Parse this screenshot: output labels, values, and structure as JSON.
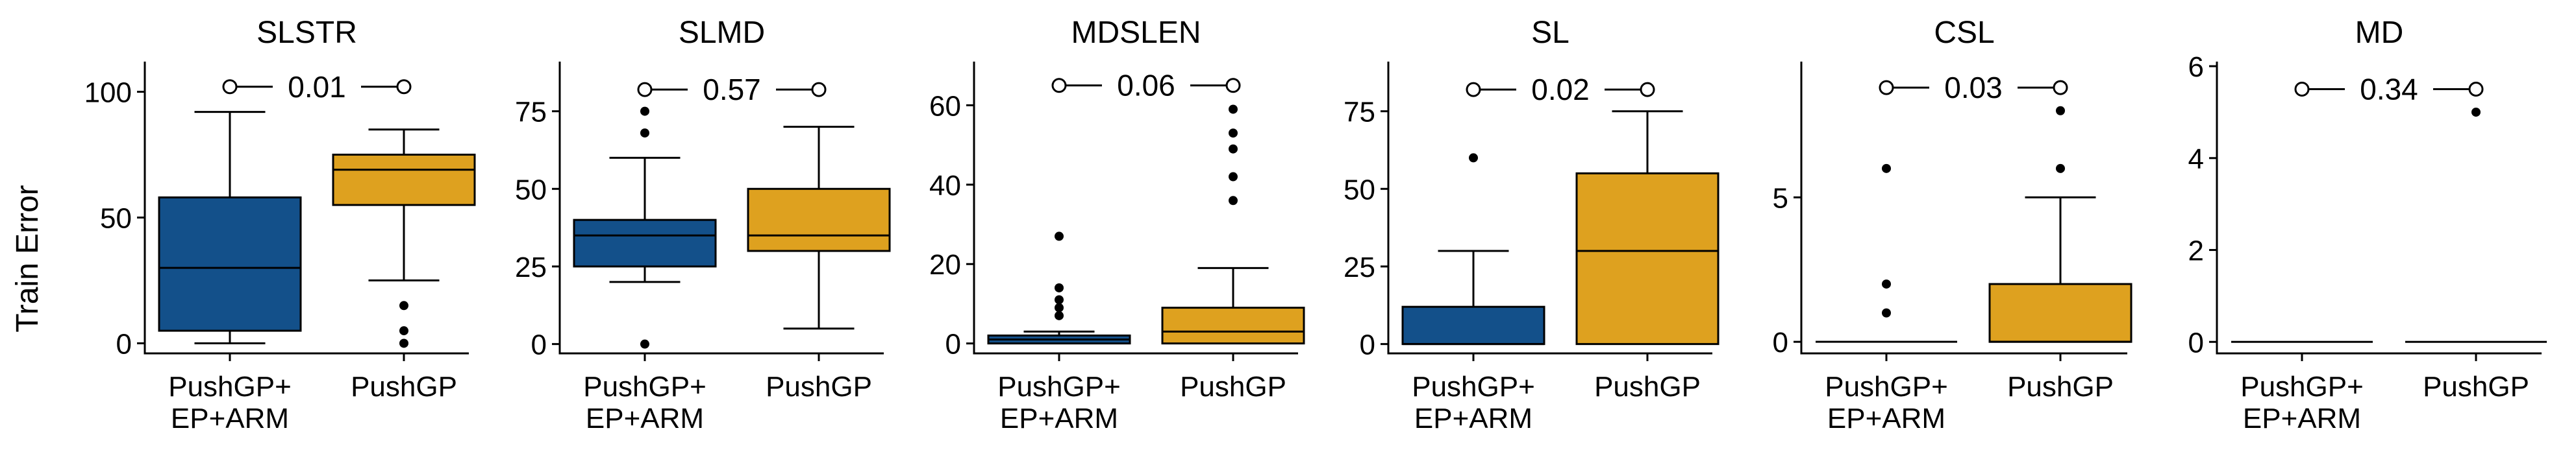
{
  "figure": {
    "ylabel": "Train Error"
  },
  "colors": {
    "PushGP+EP+ARM": "#13508a",
    "PushGP": "#dea11f",
    "edge": "#000000"
  },
  "chart_data": [
    {
      "type": "boxplot",
      "title": "SLSTR",
      "categories": [
        "PushGP+\nEP+ARM",
        "PushGP"
      ],
      "ylabel": "Train Error",
      "ylim": [
        -4,
        112
      ],
      "yticks": [
        0,
        50,
        100
      ],
      "grid": false,
      "annotation": {
        "text": "0.01",
        "y": 102
      },
      "series": [
        {
          "name": "PushGP+EP+ARM",
          "color": "#13508a",
          "whisker_low": 0,
          "q1": 5,
          "median": 30,
          "q3": 58,
          "whisker_high": 92,
          "outliers": []
        },
        {
          "name": "PushGP",
          "color": "#dea11f",
          "whisker_low": 25,
          "q1": 55,
          "median": 69,
          "q3": 75,
          "whisker_high": 85,
          "outliers": [
            15,
            5,
            0
          ]
        }
      ]
    },
    {
      "type": "boxplot",
      "title": "SLMD",
      "categories": [
        "PushGP+\nEP+ARM",
        "PushGP"
      ],
      "ylim": [
        -3,
        91
      ],
      "yticks": [
        0,
        25,
        50,
        75
      ],
      "grid": false,
      "annotation": {
        "text": "0.57",
        "y": 82
      },
      "series": [
        {
          "name": "PushGP+EP+ARM",
          "color": "#13508a",
          "whisker_low": 20,
          "q1": 25,
          "median": 35,
          "q3": 40,
          "whisker_high": 60,
          "outliers": [
            75,
            68,
            0
          ]
        },
        {
          "name": "PushGP",
          "color": "#dea11f",
          "whisker_low": 5,
          "q1": 30,
          "median": 35,
          "q3": 50,
          "whisker_high": 70,
          "outliers": []
        }
      ]
    },
    {
      "type": "boxplot",
      "title": "MDSLEN",
      "categories": [
        "PushGP+\nEP+ARM",
        "PushGP"
      ],
      "ylim": [
        -2.5,
        71
      ],
      "yticks": [
        0,
        20,
        40,
        60
      ],
      "grid": false,
      "annotation": {
        "text": "0.06",
        "y": 65
      },
      "series": [
        {
          "name": "PushGP+EP+ARM",
          "color": "#13508a",
          "whisker_low": 0,
          "q1": 0,
          "median": 1,
          "q3": 2,
          "whisker_high": 3,
          "outliers": [
            27,
            14,
            11,
            9,
            7
          ]
        },
        {
          "name": "PushGP",
          "color": "#dea11f",
          "whisker_low": 0,
          "q1": 0,
          "median": 3,
          "q3": 9,
          "whisker_high": 19,
          "outliers": [
            59,
            53,
            49,
            42,
            36
          ]
        }
      ]
    },
    {
      "type": "boxplot",
      "title": "SL",
      "categories": [
        "PushGP+\nEP+ARM",
        "PushGP"
      ],
      "ylim": [
        -3,
        91
      ],
      "yticks": [
        0,
        25,
        50,
        75
      ],
      "grid": false,
      "annotation": {
        "text": "0.02",
        "y": 82
      },
      "series": [
        {
          "name": "PushGP+EP+ARM",
          "color": "#13508a",
          "whisker_low": 0,
          "q1": 0,
          "median": 0,
          "q3": 12,
          "whisker_high": 30,
          "outliers": [
            60
          ]
        },
        {
          "name": "PushGP",
          "color": "#dea11f",
          "whisker_low": 0,
          "q1": 0,
          "median": 30,
          "q3": 55,
          "whisker_high": 75,
          "outliers": []
        }
      ]
    },
    {
      "type": "boxplot",
      "title": "CSL",
      "categories": [
        "PushGP+\nEP+ARM",
        "PushGP"
      ],
      "ylim": [
        -0.4,
        9.7
      ],
      "yticks": [
        0,
        5
      ],
      "grid": false,
      "annotation": {
        "text": "0.03",
        "y": 8.8
      },
      "series": [
        {
          "name": "PushGP+EP+ARM",
          "color": "#13508a",
          "whisker_low": 0,
          "q1": 0,
          "median": 0,
          "q3": 0,
          "whisker_high": 0,
          "outliers": [
            6,
            2,
            1
          ]
        },
        {
          "name": "PushGP",
          "color": "#dea11f",
          "whisker_low": 0,
          "q1": 0,
          "median": 0,
          "q3": 2,
          "whisker_high": 5,
          "outliers": [
            8,
            6
          ]
        }
      ]
    },
    {
      "type": "boxplot",
      "title": "MD",
      "categories": [
        "PushGP+\nEP+ARM",
        "PushGP"
      ],
      "ylim": [
        -0.25,
        6.1
      ],
      "yticks": [
        0,
        2,
        4,
        6
      ],
      "grid": false,
      "annotation": {
        "text": "0.34",
        "y": 5.5
      },
      "series": [
        {
          "name": "PushGP+EP+ARM",
          "color": "#13508a",
          "whisker_low": 0,
          "q1": 0,
          "median": 0,
          "q3": 0,
          "whisker_high": 0,
          "outliers": []
        },
        {
          "name": "PushGP",
          "color": "#dea11f",
          "whisker_low": 0,
          "q1": 0,
          "median": 0,
          "q3": 0,
          "whisker_high": 0,
          "outliers": [
            5
          ]
        }
      ]
    }
  ]
}
